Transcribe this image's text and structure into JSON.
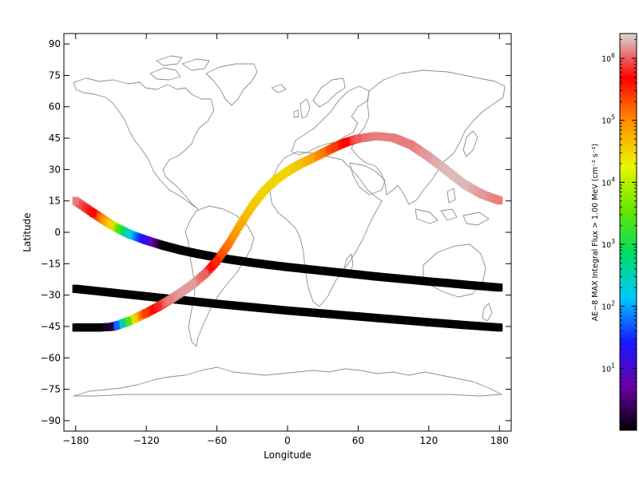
{
  "chart_data": {
    "type": "scatter",
    "title": "",
    "xlabel": "Longitude",
    "ylabel": "Latitude",
    "xlim": [
      -190,
      190
    ],
    "ylim": [
      -95,
      95
    ],
    "x_ticks": [
      -180,
      -120,
      -60,
      0,
      60,
      120,
      180
    ],
    "x_tick_labels": [
      "−180",
      "−120",
      "−60",
      "0",
      "60",
      "120",
      "180"
    ],
    "y_ticks": [
      90,
      75,
      60,
      45,
      30,
      15,
      0,
      -15,
      -30,
      -45,
      -60,
      -75,
      -90
    ],
    "y_tick_labels": [
      "90",
      "75",
      "60",
      "45",
      "30",
      "15",
      "0",
      "−15",
      "−30",
      "−45",
      "−60",
      "−75",
      "−90"
    ],
    "background": "world coastline map",
    "grid": false,
    "legend": "colorbar-right",
    "colorbar": {
      "label": "AE−8 MAX Integral Flux > 1.00 MeV (cm⁻² s⁻¹)",
      "scale": "log",
      "ticks": [
        {
          "base": "10",
          "exp": "1",
          "value": 10
        },
        {
          "base": "10",
          "exp": "2",
          "value": 100
        },
        {
          "base": "10",
          "exp": "3",
          "value": 1000
        },
        {
          "base": "10",
          "exp": "4",
          "value": 10000
        },
        {
          "base": "10",
          "exp": "5",
          "value": 100000
        },
        {
          "base": "10",
          "exp": "6",
          "value": 1000000
        }
      ],
      "colors": [
        "#000000",
        "#6a00a8",
        "#1818ff",
        "#00c8ff",
        "#00dc64",
        "#66e600",
        "#eaf500",
        "#ff9000",
        "#ff0000",
        "#d8d8d8"
      ]
    },
    "series": [
      {
        "role": "orbit track 1",
        "x": [
          -180,
          -165,
          -150,
          -135,
          -120,
          -105,
          -90,
          -75,
          -60,
          -45,
          -30,
          -15,
          0,
          15,
          30,
          45,
          60,
          75,
          90,
          105,
          120,
          135,
          150,
          165,
          180
        ],
        "y": [
          15,
          9.2,
          3.6,
          -0.7,
          -3.8,
          -6.4,
          -8.6,
          -10.4,
          -12,
          -13.3,
          -14.5,
          -15.6,
          -16.6,
          -17.5,
          -18.4,
          -19.3,
          -20.2,
          -21.1,
          -21.9,
          -22.7,
          -23.5,
          -24.2,
          -25,
          -25.7,
          -26.4
        ],
        "log_flux": [
          6.1,
          5.7,
          4.5,
          2.4,
          1.2,
          0,
          0,
          0,
          0,
          0,
          0,
          0,
          0,
          0,
          0,
          0,
          0,
          0,
          0,
          0,
          0,
          0,
          0,
          0,
          0
        ]
      },
      {
        "role": "orbit track 2",
        "x": [
          -180,
          -150,
          -120,
          -90,
          -60,
          -30,
          0,
          30,
          60,
          90,
          120,
          150,
          180
        ],
        "y": [
          -27,
          -28.8,
          -30.6,
          -32.4,
          -34.2,
          -35.8,
          -37.4,
          -38.8,
          -40.2,
          -41.6,
          -43,
          -44.3,
          -45.5
        ],
        "log_flux": [
          0,
          0,
          0,
          0,
          0,
          0,
          0,
          0,
          0,
          0,
          0,
          0,
          0
        ]
      },
      {
        "role": "orbit track 3",
        "x": [
          -180,
          -160,
          -150,
          -145,
          -140,
          -135,
          -130,
          -120,
          -110,
          -100,
          -90,
          -80,
          -70,
          -60,
          -50,
          -40,
          -30,
          -20,
          -10,
          0,
          10,
          20,
          30,
          40,
          50,
          60,
          75,
          90,
          105,
          120,
          135,
          150,
          165,
          180
        ],
        "y": [
          -45.5,
          -45.5,
          -45.2,
          -44.5,
          -43.5,
          -42.5,
          -41.3,
          -38.6,
          -35.6,
          -32.3,
          -28.6,
          -24.6,
          -19.8,
          -13.7,
          -5.6,
          3.8,
          12.6,
          19.7,
          25.1,
          29.1,
          32.4,
          35.1,
          37.9,
          40.7,
          43.1,
          44.8,
          46,
          45.2,
          41.8,
          36.1,
          29.6,
          23,
          18.2,
          15.2
        ],
        "log_flux": [
          0,
          0,
          0.2,
          1.7,
          2.5,
          3.4,
          4.5,
          5.4,
          5.8,
          6.1,
          6.2,
          6.2,
          6,
          5.5,
          5.1,
          4.8,
          4.6,
          4.5,
          4.5,
          4.5,
          4.6,
          4.8,
          5.1,
          5.4,
          5.7,
          6,
          6.1,
          6.1,
          6.1,
          6.2,
          6.3,
          6.3,
          6.2,
          6.1
        ]
      }
    ]
  }
}
